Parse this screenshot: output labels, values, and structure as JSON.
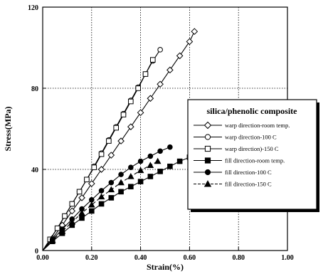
{
  "chart_data": {
    "type": "line",
    "title": "silica/phenolic composite",
    "xlabel": "Strain(%)",
    "ylabel": "Stress(MPa)",
    "xlim": [
      0,
      1.0
    ],
    "ylim": [
      0,
      120
    ],
    "xticks": [
      0,
      0.2,
      0.4,
      0.6,
      0.8,
      1.0
    ],
    "xtick_labels": [
      "0.00",
      "0.20",
      "0.40",
      "0.60",
      "0.80",
      "1.00"
    ],
    "yticks": [
      0,
      40,
      80,
      120
    ],
    "ytick_labels": [
      "0",
      "40",
      "80",
      "120"
    ],
    "grid": "dotted",
    "legend_position": "right",
    "series": [
      {
        "name": "warp direction-room temp.",
        "marker": "diamond-open",
        "dash": "solid",
        "x": [
          0,
          0.04,
          0.08,
          0.12,
          0.16,
          0.2,
          0.24,
          0.28,
          0.32,
          0.36,
          0.4,
          0.44,
          0.48,
          0.52,
          0.56,
          0.6,
          0.62
        ],
        "y": [
          0,
          6,
          12.5,
          19.5,
          26,
          33,
          40,
          47,
          54,
          61,
          68,
          75,
          82,
          89,
          96,
          103,
          108
        ]
      },
      {
        "name": "warp direction-100 C",
        "marker": "circle-open",
        "dash": "solid",
        "x": [
          0,
          0.03,
          0.06,
          0.09,
          0.12,
          0.15,
          0.18,
          0.21,
          0.24,
          0.27,
          0.3,
          0.33,
          0.36,
          0.39,
          0.42,
          0.45,
          0.48
        ],
        "y": [
          0,
          5.5,
          11,
          17,
          23,
          29,
          35,
          41.5,
          48,
          54.5,
          61,
          67.5,
          74,
          80.5,
          87,
          93.5,
          99
        ]
      },
      {
        "name": "warp direction)-150 C",
        "marker": "square-open",
        "dash": "solid",
        "x": [
          0,
          0.03,
          0.06,
          0.09,
          0.12,
          0.15,
          0.18,
          0.21,
          0.24,
          0.27,
          0.3,
          0.33,
          0.36,
          0.39,
          0.42,
          0.45
        ],
        "y": [
          0,
          5.5,
          11,
          17,
          23,
          29,
          35,
          41,
          47.5,
          54,
          60.5,
          67,
          73.5,
          80,
          87,
          94
        ]
      },
      {
        "name": "fill direction-room temp.",
        "marker": "square-filled",
        "dash": "solid",
        "x": [
          0,
          0.04,
          0.08,
          0.12,
          0.16,
          0.2,
          0.24,
          0.28,
          0.32,
          0.36,
          0.4,
          0.44,
          0.48,
          0.52,
          0.56,
          0.6,
          0.64,
          0.68
        ],
        "y": [
          0,
          4.5,
          8.5,
          12.5,
          16,
          19.5,
          23,
          26,
          29,
          31.5,
          34,
          36.5,
          39,
          41.5,
          44,
          46,
          48,
          49.5
        ]
      },
      {
        "name": "fill direction-100 C",
        "marker": "circle-filled",
        "dash": "solid",
        "x": [
          0,
          0.04,
          0.08,
          0.12,
          0.16,
          0.2,
          0.24,
          0.28,
          0.32,
          0.36,
          0.4,
          0.44,
          0.48,
          0.52
        ],
        "y": [
          0,
          5.5,
          10.5,
          15.5,
          20.5,
          25,
          29.5,
          33.5,
          37.5,
          41,
          44,
          46.5,
          49,
          51
        ]
      },
      {
        "name": "fill direction-150 C",
        "marker": "triangle-filled",
        "dash": "dashed",
        "x": [
          0,
          0.04,
          0.08,
          0.12,
          0.16,
          0.2,
          0.24,
          0.28,
          0.32,
          0.36,
          0.4,
          0.44,
          0.47
        ],
        "y": [
          0,
          5,
          9.5,
          14,
          18.5,
          22.5,
          26.5,
          30,
          33.5,
          36.5,
          39.5,
          42,
          44
        ]
      }
    ]
  }
}
